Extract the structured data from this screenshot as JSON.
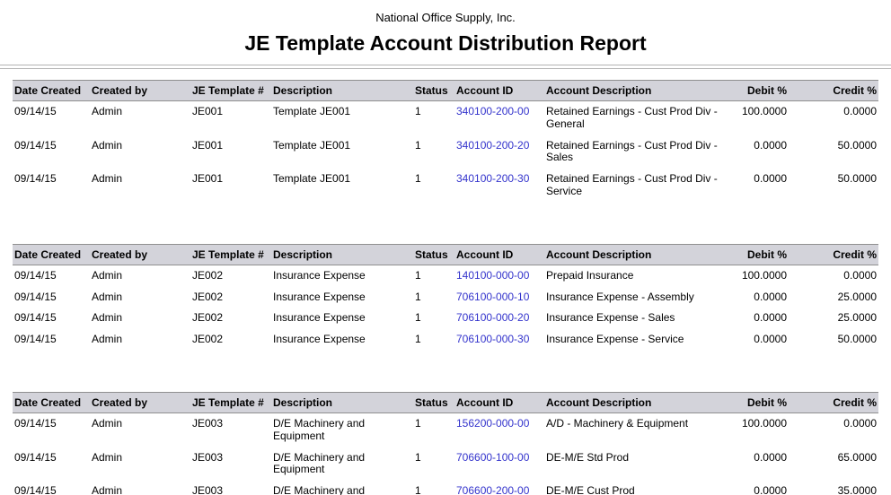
{
  "report": {
    "company": "National Office Supply, Inc.",
    "title": "JE Template Account Distribution Report"
  },
  "columns": [
    {
      "key": "date-created",
      "label": "Date Created"
    },
    {
      "key": "created-by",
      "label": "Created by"
    },
    {
      "key": "je-template-number",
      "label": "JE Template #"
    },
    {
      "key": "description",
      "label": "Description"
    },
    {
      "key": "status",
      "label": "Status"
    },
    {
      "key": "account-id",
      "label": "Account ID"
    },
    {
      "key": "account-description",
      "label": "Account Description"
    },
    {
      "key": "debit-pct",
      "label": "Debit %"
    },
    {
      "key": "credit-pct",
      "label": "Credit %"
    }
  ],
  "tables": [
    {
      "rows": [
        [
          "09/14/15",
          "Admin",
          "JE001",
          "Template JE001",
          "1",
          "340100-200-00",
          "Retained Earnings - Cust Prod Div - General",
          "100.0000",
          "0.0000"
        ],
        [
          "09/14/15",
          "Admin",
          "JE001",
          "Template JE001",
          "1",
          "340100-200-20",
          "Retained Earnings - Cust Prod Div - Sales",
          "0.0000",
          "50.0000"
        ],
        [
          "09/14/15",
          "Admin",
          "JE001",
          "Template JE001",
          "1",
          "340100-200-30",
          "Retained Earnings - Cust Prod Div - Service",
          "0.0000",
          "50.0000"
        ]
      ]
    },
    {
      "rows": [
        [
          "09/14/15",
          "Admin",
          "JE002",
          "Insurance Expense",
          "1",
          "140100-000-00",
          "Prepaid Insurance",
          "100.0000",
          "0.0000"
        ],
        [
          "09/14/15",
          "Admin",
          "JE002",
          "Insurance Expense",
          "1",
          "706100-000-10",
          "Insurance Expense - Assembly",
          "0.0000",
          "25.0000"
        ],
        [
          "09/14/15",
          "Admin",
          "JE002",
          "Insurance Expense",
          "1",
          "706100-000-20",
          "Insurance Expense - Sales",
          "0.0000",
          "25.0000"
        ],
        [
          "09/14/15",
          "Admin",
          "JE002",
          "Insurance Expense",
          "1",
          "706100-000-30",
          "Insurance Expense - Service",
          "0.0000",
          "50.0000"
        ]
      ]
    },
    {
      "rows": [
        [
          "09/14/15",
          "Admin",
          "JE003",
          "D/E Machinery and Equipment",
          "1",
          "156200-000-00",
          "A/D - Machinery & Equipment",
          "100.0000",
          "0.0000"
        ],
        [
          "09/14/15",
          "Admin",
          "JE003",
          "D/E Machinery and Equipment",
          "1",
          "706600-100-00",
          "DE-M/E Std Prod",
          "0.0000",
          "65.0000"
        ],
        [
          "09/14/15",
          "Admin",
          "JE003",
          "D/E Machinery and Equipment",
          "1",
          "706600-200-00",
          "DE-M/E Cust Prod",
          "0.0000",
          "35.0000"
        ]
      ]
    }
  ]
}
